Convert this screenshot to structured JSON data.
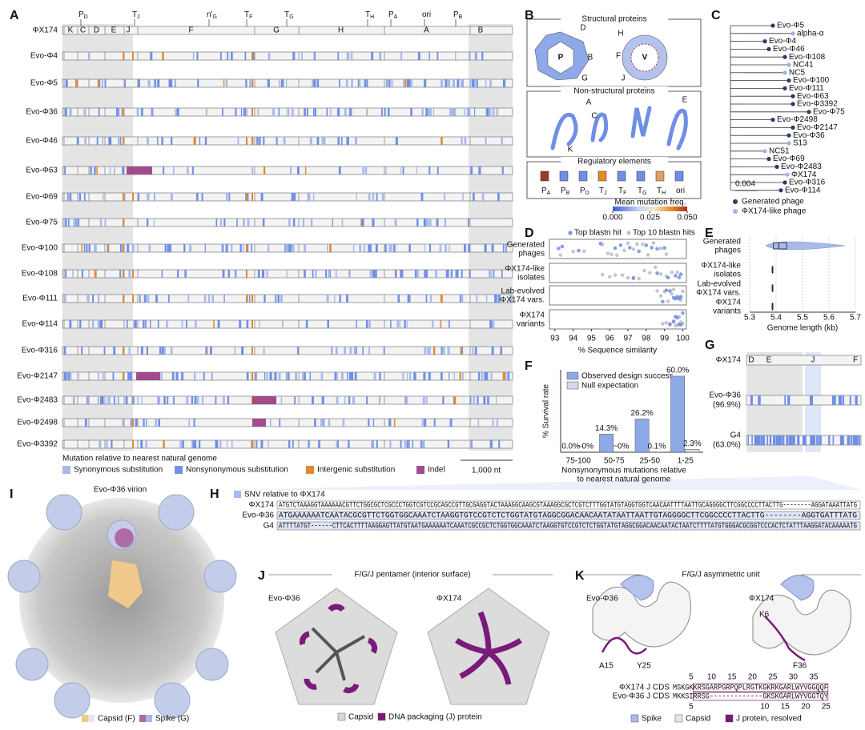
{
  "panel_labels": [
    "A",
    "B",
    "C",
    "D",
    "E",
    "F",
    "G",
    "H",
    "I",
    "J",
    "K"
  ],
  "panel_a": {
    "top_labels": [
      {
        "main": "P",
        "sub": "D"
      },
      {
        "main": "T",
        "sub": "J"
      },
      {
        "main": "n'",
        "sub": "G"
      },
      {
        "main": "T",
        "sub": "F"
      },
      {
        "main": "T",
        "sub": "G"
      },
      {
        "main": "T",
        "sub": "H"
      },
      {
        "main": "P",
        "sub": "A"
      },
      {
        "main": "ori"
      },
      {
        "main": "P",
        "sub": "B"
      }
    ],
    "genes": [
      "K",
      "C",
      "D",
      "E",
      "J",
      "F",
      "G",
      "H",
      "A",
      "B"
    ],
    "genomes": [
      "ΦX174",
      "Evo-Φ4",
      "Evo-Φ5",
      "Evo-Φ36",
      "Evo-Φ46",
      "Evo-Φ63",
      "Evo-Φ69",
      "Evo-Φ75",
      "Evo-Φ100",
      "Evo-Φ108",
      "Evo-Φ111",
      "Evo-Φ114",
      "Evo-Φ316",
      "Evo-Φ2147",
      "Evo-Φ2483",
      "Evo-Φ2498",
      "Evo-Φ3392"
    ],
    "legend_title": "Mutation relative to nearest natural genome",
    "legend": [
      {
        "name": "Synonymous substitution",
        "color": "#a9b9ea"
      },
      {
        "name": "Nonsynonymous substitution",
        "color": "#6f8fe5"
      },
      {
        "name": "Intergenic substitution",
        "color": "#e08a2c"
      },
      {
        "name": "Indel",
        "color": "#a04c8c"
      }
    ],
    "scale": "1,000 nt"
  },
  "panel_b": {
    "boxes": [
      "Structural proteins",
      "Non-structural proteins",
      "Regulatory elements"
    ],
    "structural_labels": [
      "D",
      "B",
      "G",
      "P",
      "H",
      "F",
      "V",
      "J"
    ],
    "nonstructural_labels": [
      "A",
      "C",
      "E",
      "K"
    ],
    "regulatory": [
      {
        "main": "P",
        "sub": "A"
      },
      {
        "main": "P",
        "sub": "B"
      },
      {
        "main": "P",
        "sub": "D"
      },
      {
        "main": "T",
        "sub": "J"
      },
      {
        "main": "T",
        "sub": "F"
      },
      {
        "main": "T",
        "sub": "G"
      },
      {
        "main": "T",
        "sub": "H"
      },
      {
        "main": "ori"
      }
    ],
    "colorbar": {
      "title": "Mean mutation freq.",
      "lim": [
        0,
        0.05
      ],
      "ticks": [
        {
          "value": 0,
          "label": "0.000"
        },
        {
          "value": 0.025,
          "label": "0.025"
        },
        {
          "value": 0.05,
          "label": "0.050"
        }
      ]
    }
  },
  "panel_c": {
    "leaves": [
      {
        "name": "Evo-Φ5",
        "color": "#2b3a67"
      },
      {
        "name": "alpha-α",
        "color": "#9fb3e6"
      },
      {
        "name": "Evo-Φ4",
        "color": "#2b3a67"
      },
      {
        "name": "Evo-Φ46",
        "color": "#2b3a67"
      },
      {
        "name": "Evo-Φ108",
        "color": "#2b3a67"
      },
      {
        "name": "NC41",
        "color": "#9fb3e6"
      },
      {
        "name": "NC5",
        "color": "#9fb3e6"
      },
      {
        "name": "Evo-Φ100",
        "color": "#2b3a67"
      },
      {
        "name": "Evo-Φ111",
        "color": "#2b3a67"
      },
      {
        "name": "Evo-Φ63",
        "color": "#2b3a67"
      },
      {
        "name": "Evo-Φ3392",
        "color": "#2b3a67"
      },
      {
        "name": "Evo-Φ75",
        "color": "#2b3a67"
      },
      {
        "name": "Evo-Φ2498",
        "color": "#2b3a67"
      },
      {
        "name": "Evo-Φ2147",
        "color": "#2b3a67"
      },
      {
        "name": "Evo-Φ36",
        "color": "#2b3a67"
      },
      {
        "name": "S13",
        "color": "#9fb3e6"
      },
      {
        "name": "NC51",
        "color": "#9fb3e6"
      },
      {
        "name": "Evo-Φ69",
        "color": "#2b3a67"
      },
      {
        "name": "Evo-Φ2483",
        "color": "#2b3a67"
      },
      {
        "name": "ΦX174",
        "color": "#9fb3e6"
      },
      {
        "name": "Evo-Φ316",
        "color": "#2b3a67"
      },
      {
        "name": "Evo-Φ114",
        "color": "#2b3a67"
      }
    ],
    "scale": "0.004",
    "legend": [
      {
        "name": "Generated phage",
        "color": "#2b3a67"
      },
      {
        "name": "ΦX174-like phage",
        "color": "#9fb3e6"
      }
    ]
  },
  "panel_d": {
    "type": "strip",
    "categories": [
      [
        "Generated",
        "phages"
      ],
      [
        "ΦX174-like",
        "isolates"
      ],
      [
        "Lab-evolved",
        "ΦX174 vars."
      ],
      [
        "ΦX174",
        "variants"
      ]
    ],
    "xlabel": "% Sequence similarity",
    "xlim": [
      92.7,
      100.2
    ],
    "xticks": [
      93,
      94,
      95,
      96,
      97,
      98,
      99,
      100
    ],
    "series": [
      {
        "name": "Top 10 blastn hits",
        "color": "#bdbdbd",
        "values": [
          [
            93.3,
            94.0,
            94.6,
            95.6,
            95.9,
            96.1,
            96.4,
            96.8,
            97.0,
            97.3,
            97.5,
            97.8,
            98.1,
            98.4,
            98.8,
            99.1
          ],
          [
            95.6,
            96.0,
            96.3,
            96.7,
            97.0,
            97.3,
            97.6,
            97.9,
            98.2,
            98.5,
            98.8,
            99.1,
            99.4,
            99.7
          ],
          [
            98.6,
            98.8,
            99.0,
            99.2,
            99.4,
            99.6,
            99.8,
            100.0,
            99.9,
            99.5
          ],
          [
            98.9,
            99.1,
            99.3,
            99.5,
            99.7,
            99.9,
            100.0,
            99.8,
            99.6
          ]
        ]
      },
      {
        "name": "Top blastn hit",
        "color": "#6f8fe5",
        "values": [
          [
            93.2,
            93.4,
            94.3,
            95.5,
            96.3,
            96.6,
            97.1,
            97.6,
            98.0,
            98.3,
            98.6,
            99.0
          ],
          [
            97.3,
            98.6,
            99.2,
            99.6,
            99.8,
            99.9
          ],
          [
            98.9,
            99.1,
            99.3,
            99.5,
            99.6,
            99.7,
            99.8,
            99.9
          ],
          [
            99.3,
            99.5,
            99.6,
            99.7,
            99.8,
            99.9,
            100.0
          ]
        ]
      }
    ]
  },
  "panel_e": {
    "type": "violin",
    "categories": [
      [
        "Generated",
        "phages"
      ],
      [
        "ΦX174-like",
        "isolates"
      ],
      [
        "Lab-evolved",
        "ΦX174 vars."
      ],
      [
        "ΦX174",
        "variants"
      ]
    ],
    "xlabel": "Genome length (kb)",
    "xlim": [
      5.3,
      5.7
    ],
    "xticks": [
      5.3,
      5.4,
      5.5,
      5.6,
      5.7
    ],
    "stats": [
      [
        5.36,
        5.39,
        5.41,
        5.44,
        5.66
      ],
      [
        5.384,
        5.385,
        5.386,
        5.387,
        5.389
      ],
      [
        5.384,
        5.385,
        5.386,
        5.387,
        5.389
      ],
      [
        5.384,
        5.385,
        5.386,
        5.387,
        5.389
      ]
    ],
    "color": "#a9b9ea"
  },
  "panel_f": {
    "type": "bar",
    "ylabel": "% Survival rate",
    "xlabel": [
      "Nonsynonymous mutations relative",
      "to nearest natural genome"
    ],
    "categories": [
      "75-100",
      "50-75",
      "25-50",
      "1-25"
    ],
    "ylim": [
      0,
      65
    ],
    "series": [
      {
        "name": "Observed design success",
        "color": "#8ea9e8",
        "values": [
          0.0,
          14.3,
          26.2,
          60.0
        ],
        "value_labels": [
          "0.0%",
          "14.3%",
          "26.2%",
          "60.0%"
        ]
      },
      {
        "name": "Null expectation",
        "color": "#d3d9e8",
        "values": [
          0,
          0,
          0.1,
          2.3
        ],
        "value_labels": [
          "~0%",
          "~0%",
          "0.1%",
          "2.3%"
        ]
      }
    ]
  },
  "panel_g": {
    "rows": [
      {
        "name": "ΦX174"
      },
      {
        "name": "Evo-Φ36",
        "identity": "(96.9%)"
      },
      {
        "name": "G4",
        "identity": "(63.0%)"
      }
    ],
    "genes": [
      "D",
      "E",
      "J",
      "F"
    ]
  },
  "panel_h": {
    "legend": "SNV relative to ΦX174",
    "rows": [
      {
        "name": "ΦX174",
        "seq": "ATGTCTAAAGGTAAAAAACGTTCTGGCGCTCGCCCTGGTCGTCCGCAGCCGTTGCGAGGTACTAAAGGCAAGCGTAAAGGCGCTCGTCTTTGGTATGTAGGTGGTCAACAATTTTAATTGCAGGGGCTTCGGCCCCTTACTTG--------AGGATAAATTATG"
      },
      {
        "name": "Evo-Φ36",
        "seq": "ATGAAAAAATCAATACGCGTTCTGGTGGCAAATCTAAGGTGTCCGTCTCTGGTATGTAGGCGGACAACAATATAATTAATTGTAGGGGCTTCGGCCCCTTACTTG--------AGGTGATTTATG"
      },
      {
        "name": "G4",
        "seq": "ATTTTATGT------CTTCACTTTTAAGGAGTTATGTAATGAAAAAATCAAATCGCCGCTCTGGTGGCAAATCTAAGGTGTCCGTCTCTGGTATGTAGGCGGACAACAATACTAATCTTTTATGTGGGACGCGGTCCCACTCTATTTAAGGATACAAAAATG"
      }
    ]
  },
  "panel_i": {
    "title": "Evo-Φ36 virion",
    "legend": [
      {
        "name": "Capsid (F)",
        "color": "#f0c98a"
      },
      {
        "name": "Spike (G)",
        "color": "#b06aa8"
      }
    ]
  },
  "panel_j": {
    "title": "F/G/J pentamer (interior surface)",
    "left": "Evo-Φ36",
    "right": "ΦX174",
    "legend": [
      {
        "name": "Capsid",
        "color": "#d8d8d8"
      },
      {
        "name": "DNA packaging (J) protein",
        "color": "#7a1a7a"
      }
    ]
  },
  "panel_k": {
    "title": "F/G/J asymmetric unit",
    "left": "Evo-Φ36",
    "right": "ΦX174",
    "residues": [
      "A15",
      "Y25",
      "K6",
      "F36"
    ],
    "ruler_top": [
      5,
      10,
      15,
      20,
      25,
      30,
      35
    ],
    "ruler_bottom": [
      5,
      10,
      15,
      20,
      25
    ],
    "rows": [
      {
        "name": "ΦX174 J CDS",
        "seq": "MSKGKKRSGARPGRPQPLRGTKGKRKGARLWYVGGQQF"
      },
      {
        "name": "Evo-Φ36 J CDS",
        "seq": "MKKSIRRSG-------------GKSKGARLWYVGGTQY"
      }
    ],
    "legend": [
      {
        "name": "Spike",
        "color": "#a9b9ea"
      },
      {
        "name": "Capsid",
        "color": "#e6e6e6"
      },
      {
        "name": "J protein, resolved",
        "color": "#7a1a7a"
      }
    ]
  }
}
